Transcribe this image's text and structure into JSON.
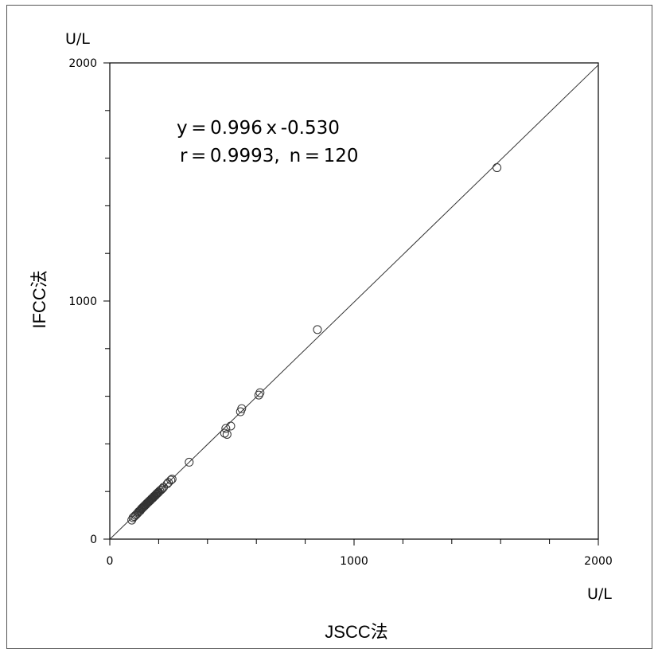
{
  "chart_data": {
    "type": "scatter",
    "title": "",
    "xlabel": "JSCC法",
    "ylabel": "IFCC法",
    "x_unit": "U/L",
    "y_unit": "U/L",
    "xlim": [
      0,
      2000
    ],
    "ylim": [
      0,
      2000
    ],
    "x_ticks": [
      "0",
      "1000",
      "2000"
    ],
    "y_ticks": [
      "0",
      "1000",
      "2000"
    ],
    "grid": false,
    "legend": "none",
    "annotation_line1": "y = 0.996 x -0.530",
    "annotation_line2": "r = 0.9993,  n = 120",
    "regression": {
      "slope": 0.996,
      "intercept": -0.53
    },
    "series": [
      {
        "marker": "open-circle",
        "points": [
          [
            90,
            80
          ],
          [
            95,
            90
          ],
          [
            100,
            95
          ],
          [
            105,
            100
          ],
          [
            110,
            105
          ],
          [
            115,
            110
          ],
          [
            118,
            115
          ],
          [
            122,
            118
          ],
          [
            125,
            120
          ],
          [
            128,
            125
          ],
          [
            130,
            128
          ],
          [
            133,
            130
          ],
          [
            135,
            133
          ],
          [
            138,
            135
          ],
          [
            140,
            138
          ],
          [
            143,
            140
          ],
          [
            145,
            143
          ],
          [
            148,
            145
          ],
          [
            150,
            148
          ],
          [
            152,
            150
          ],
          [
            155,
            153
          ],
          [
            158,
            155
          ],
          [
            160,
            158
          ],
          [
            162,
            160
          ],
          [
            165,
            162
          ],
          [
            168,
            165
          ],
          [
            170,
            168
          ],
          [
            172,
            170
          ],
          [
            175,
            172
          ],
          [
            178,
            175
          ],
          [
            180,
            178
          ],
          [
            182,
            180
          ],
          [
            185,
            182
          ],
          [
            188,
            185
          ],
          [
            190,
            188
          ],
          [
            192,
            190
          ],
          [
            195,
            193
          ],
          [
            198,
            195
          ],
          [
            200,
            198
          ],
          [
            205,
            203
          ],
          [
            210,
            207
          ],
          [
            215,
            212
          ],
          [
            220,
            218
          ],
          [
            235,
            232
          ],
          [
            240,
            238
          ],
          [
            250,
            248
          ],
          [
            255,
            252
          ],
          [
            325,
            323
          ],
          [
            470,
            445
          ],
          [
            480,
            440
          ],
          [
            475,
            465
          ],
          [
            495,
            475
          ],
          [
            535,
            535
          ],
          [
            540,
            548
          ],
          [
            610,
            605
          ],
          [
            615,
            615
          ],
          [
            850,
            880
          ],
          [
            1585,
            1560
          ]
        ]
      }
    ]
  }
}
